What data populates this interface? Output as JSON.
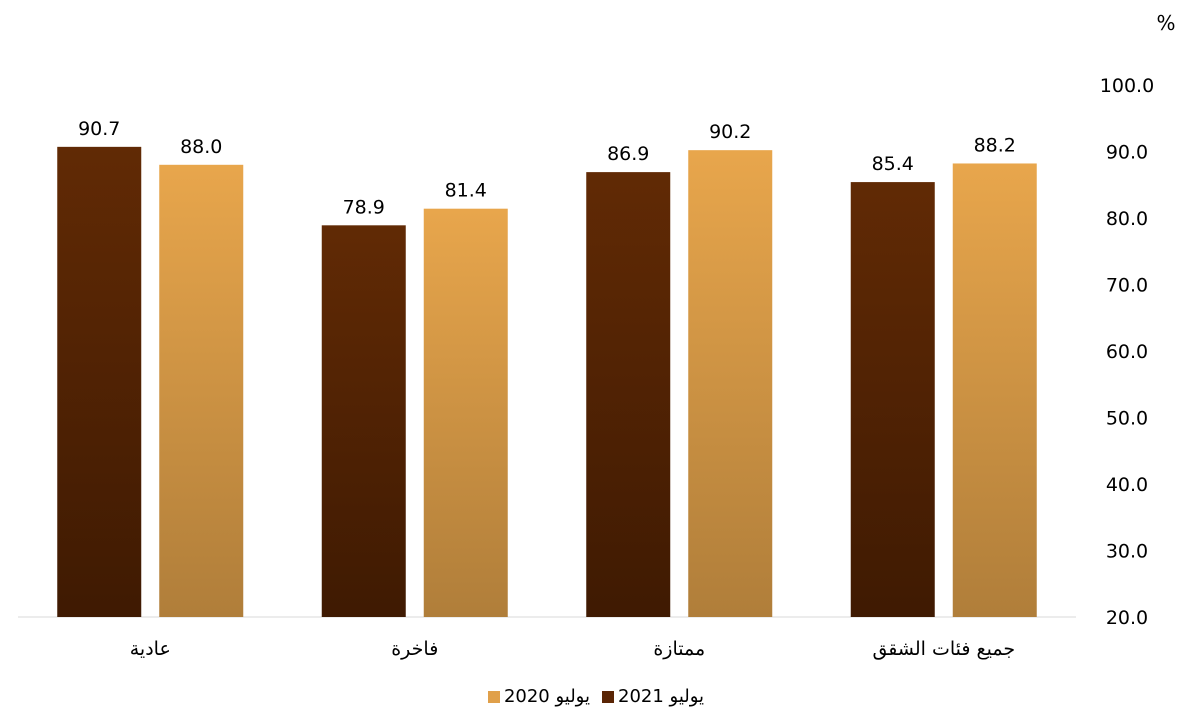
{
  "chart_data": {
    "type": "bar",
    "unit_label": "%",
    "categories": [
      "جميع فئات الشقق",
      "ممتازة",
      "فاخرة",
      "عادية"
    ],
    "series": [
      {
        "name": "يوليو 2020",
        "values": [
          88.2,
          90.2,
          81.4,
          88.0
        ],
        "color_top": "#e8a64c",
        "color_bottom": "#b07e3a"
      },
      {
        "name": "يوليو 2021",
        "values": [
          85.4,
          86.9,
          78.9,
          90.7
        ],
        "color_top": "#612a05",
        "color_bottom": "#3f1a02"
      }
    ],
    "ylim": [
      20,
      100
    ],
    "yticks": [
      "20.0",
      "30.0",
      "40.0",
      "50.0",
      "60.0",
      "70.0",
      "80.0",
      "90.0",
      "100.0"
    ],
    "y_axis_side": "right",
    "category_order": "right-to-left",
    "grid": false,
    "legend_position": "bottom"
  }
}
